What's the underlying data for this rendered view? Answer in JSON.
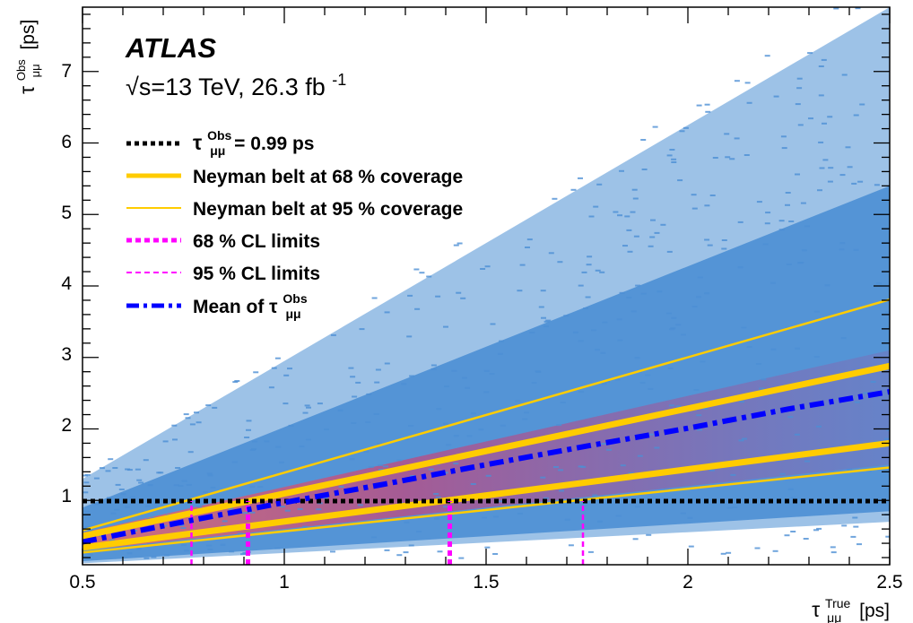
{
  "chart_data": {
    "type": "heatmap",
    "title": "",
    "xlabel": {
      "symbol": "τ",
      "sup": "True",
      "sub": "μμ",
      "unit": "[ps]"
    },
    "ylabel": {
      "symbol": "τ",
      "sup": "Obs",
      "sub": "μμ",
      "unit": "[ps]"
    },
    "xlim": [
      0.5,
      2.5
    ],
    "ylim": [
      0.1,
      7.9
    ],
    "x_ticks": [
      "0.5",
      "1",
      "1.5",
      "2",
      "2.5"
    ],
    "x_tick_values": [
      0.5,
      1.0,
      1.5,
      2.0,
      2.5
    ],
    "y_ticks": [
      "1",
      "2",
      "3",
      "4",
      "5",
      "6",
      "7"
    ],
    "y_tick_values": [
      1,
      2,
      3,
      4,
      5,
      6,
      7
    ],
    "grid": false,
    "annotation": {
      "experiment": "ATLAS",
      "energy_prefix": "√s=13 TeV, 26.3 fb",
      "energy_sup": "-1"
    },
    "legend_position": "top-left",
    "legend": [
      {
        "key": "obs",
        "prefix": "τ",
        "sup": "Obs",
        "sub": "μμ",
        "suffix": " = 0.99 ps",
        "color": "#000000",
        "style": "dotted-thick"
      },
      {
        "key": "belt68",
        "label": "Neyman belt at 68 % coverage",
        "color": "#ffcc00",
        "style": "solid-thick"
      },
      {
        "key": "belt95",
        "label": "Neyman belt at 95 % coverage",
        "color": "#ffcc00",
        "style": "solid-thin"
      },
      {
        "key": "cl68",
        "label": "68 % CL limits",
        "color": "#ff00ff",
        "style": "dashed-thick"
      },
      {
        "key": "cl95",
        "label": "95 % CL limits",
        "color": "#ff00ff",
        "style": "dashed-thin"
      },
      {
        "key": "mean",
        "prefix": "Mean of  τ",
        "sup": "Obs",
        "sub": "μμ",
        "color": "#0000ff",
        "style": "dashdot-thick"
      }
    ],
    "observed_tau": 0.99,
    "series": [
      {
        "key": "belt68_upper",
        "x": [
          0.5,
          2.5
        ],
        "y": [
          0.5,
          2.88
        ]
      },
      {
        "key": "belt68_lower",
        "x": [
          0.5,
          2.5
        ],
        "y": [
          0.34,
          1.8
        ]
      },
      {
        "key": "belt95_upper",
        "x": [
          0.5,
          2.5
        ],
        "y": [
          0.58,
          3.81
        ]
      },
      {
        "key": "belt95_lower",
        "x": [
          0.5,
          2.5
        ],
        "y": [
          0.27,
          1.46
        ]
      },
      {
        "key": "mean",
        "x": [
          0.5,
          0.75,
          1.0,
          1.25,
          1.5,
          1.75,
          2.0,
          2.25,
          2.5
        ],
        "y": [
          0.42,
          0.7,
          0.97,
          1.23,
          1.5,
          1.76,
          2.01,
          2.28,
          2.52
        ]
      }
    ],
    "limits": {
      "cl68": [
        0.91,
        1.41
      ],
      "cl95": [
        0.77,
        1.74
      ]
    },
    "colors": {
      "population": "#4c8fd4",
      "density_core": "#c0487f",
      "belt": "#ffcc00",
      "limits": "#ff00ff",
      "mean": "#0000ff",
      "observed": "#000000"
    }
  }
}
